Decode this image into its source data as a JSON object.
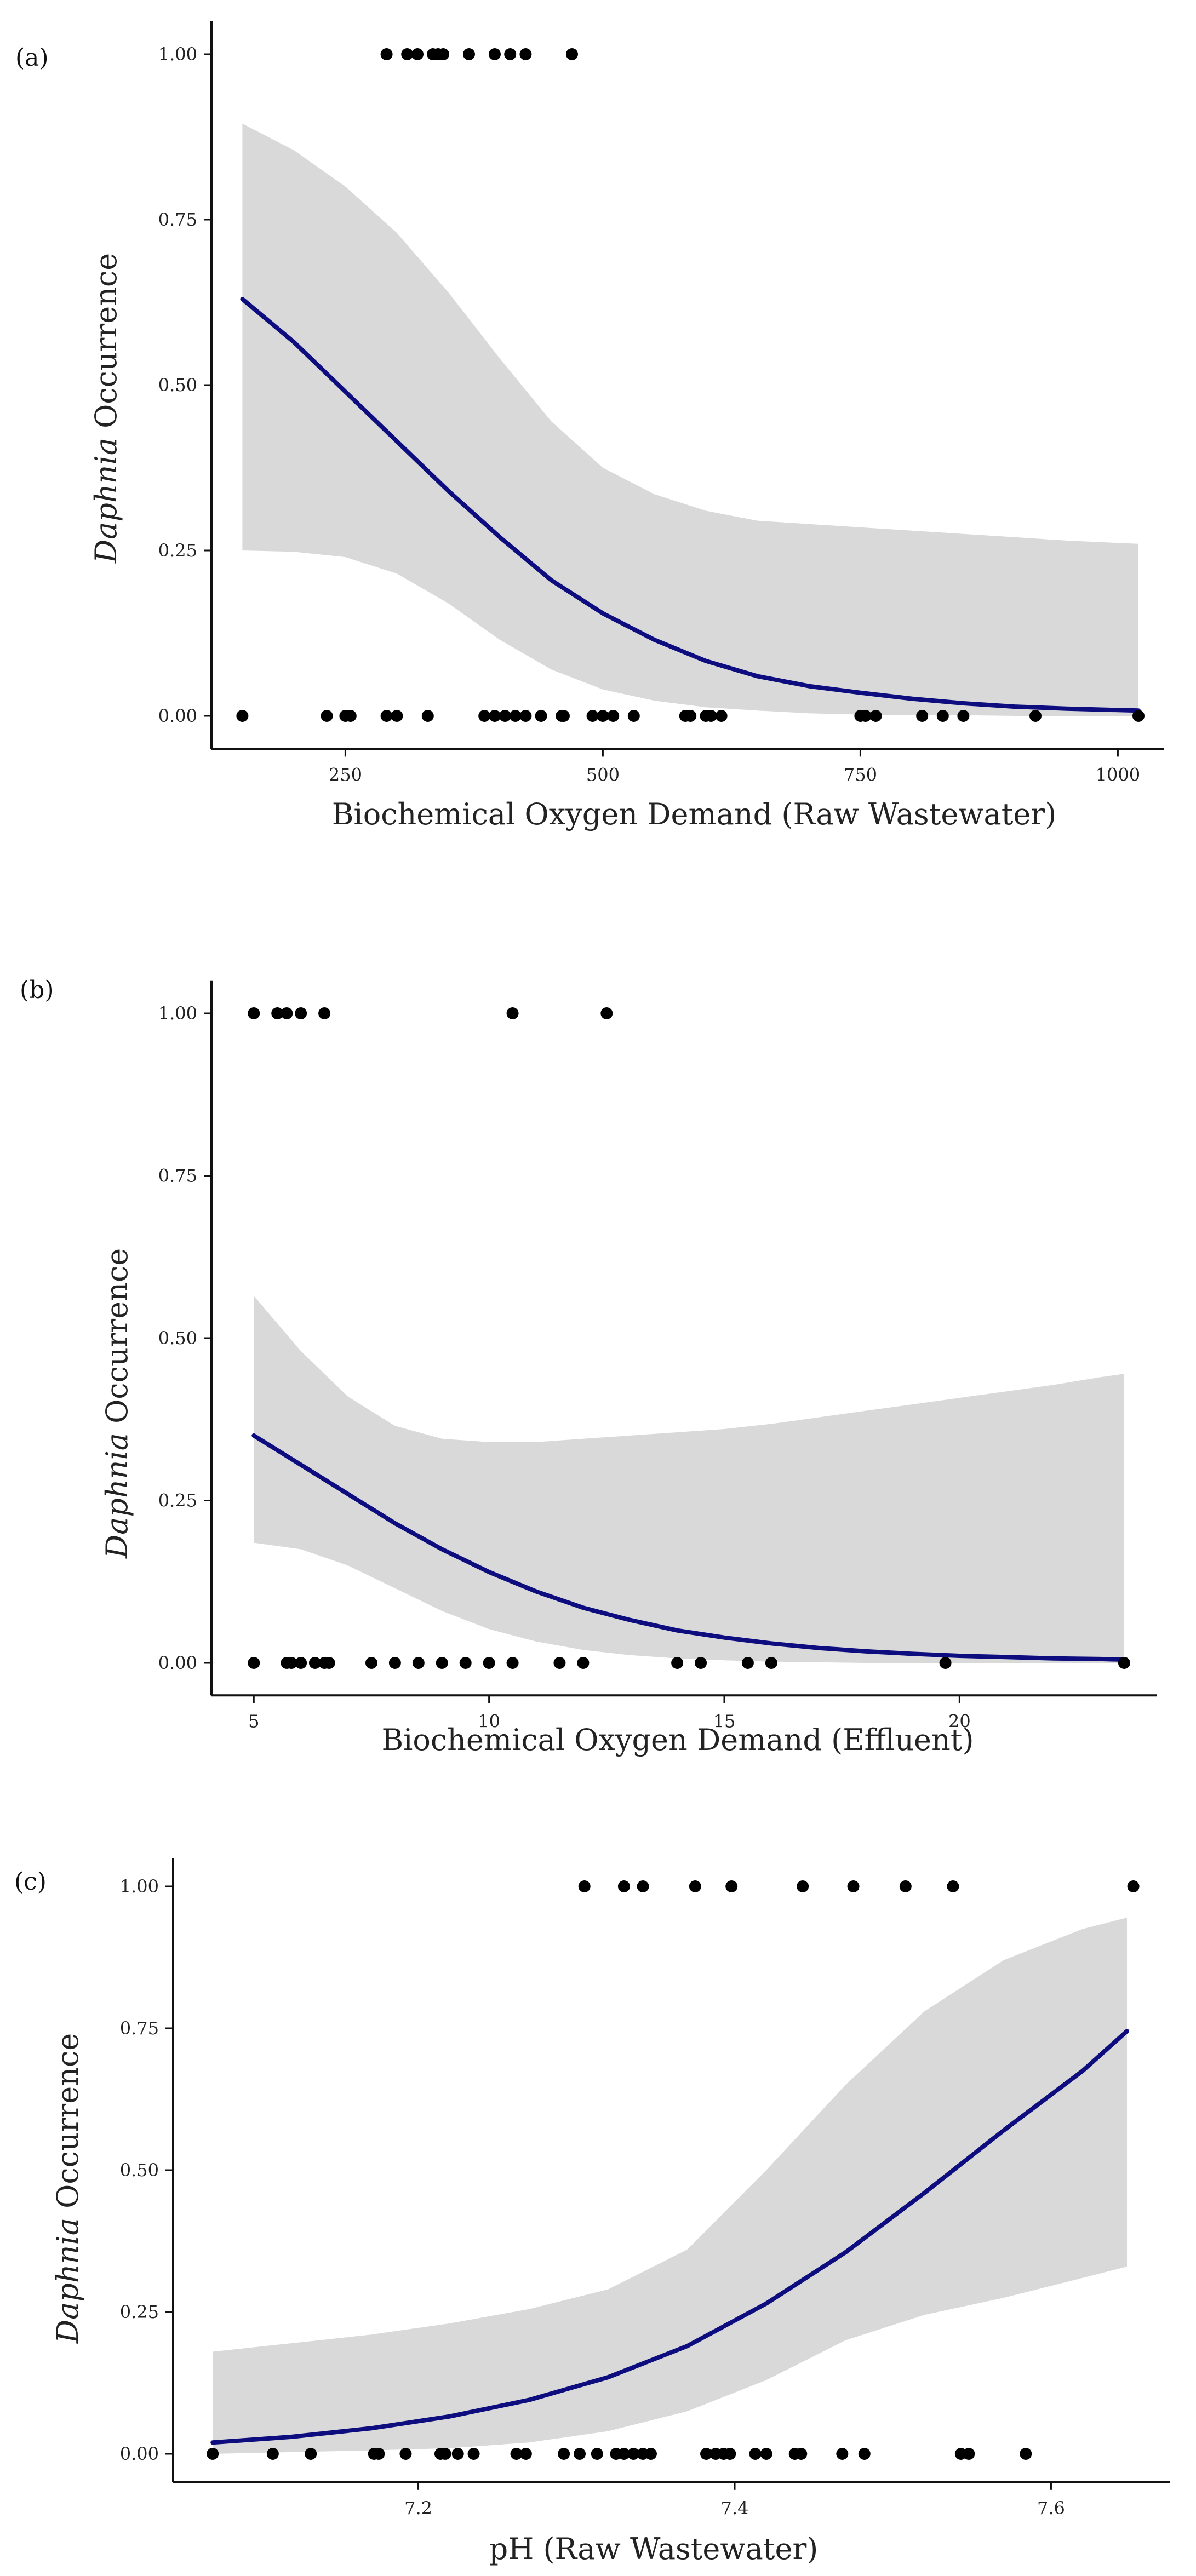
{
  "chart_data": [
    {
      "type": "scatter",
      "panel_label": "(a)",
      "xlabel": "Biochemical Oxygen Demand (Raw Wastewater)",
      "ylabel_italic": "Daphnia",
      "ylabel_rest": " Occurrence",
      "xlim": [
        120,
        1045
      ],
      "ylim": [
        -0.05,
        1.05
      ],
      "x_ticks": [
        250,
        500,
        750,
        1000
      ],
      "x_tick_labels": [
        "250",
        "500",
        "750",
        "1000"
      ],
      "y_ticks": [
        0,
        0.25,
        0.5,
        0.75,
        1
      ],
      "y_tick_labels": [
        "0.00",
        "0.25",
        "0.50",
        "0.75",
        "1.00"
      ],
      "points_y1": [
        290,
        310,
        320,
        335,
        340,
        345,
        370,
        395,
        410,
        425,
        470
      ],
      "points_y0": [
        150,
        232,
        250,
        255,
        290,
        300,
        330,
        385,
        395,
        405,
        415,
        425,
        440,
        460,
        462,
        490,
        500,
        510,
        530,
        580,
        585,
        600,
        605,
        615,
        750,
        755,
        765,
        810,
        830,
        850,
        920,
        1020
      ],
      "fit_line": {
        "x": [
          150,
          200,
          250,
          300,
          350,
          400,
          450,
          500,
          550,
          600,
          650,
          700,
          750,
          800,
          850,
          900,
          950,
          1020
        ],
        "y": [
          0.63,
          0.565,
          0.49,
          0.415,
          0.34,
          0.27,
          0.205,
          0.155,
          0.115,
          0.083,
          0.06,
          0.045,
          0.035,
          0.026,
          0.019,
          0.014,
          0.011,
          0.008
        ]
      },
      "ci_upper": [
        0.895,
        0.855,
        0.8,
        0.73,
        0.64,
        0.54,
        0.445,
        0.375,
        0.335,
        0.31,
        0.295,
        0.29,
        0.285,
        0.28,
        0.275,
        0.27,
        0.265,
        0.26
      ],
      "ci_lower": [
        0.25,
        0.248,
        0.24,
        0.215,
        0.17,
        0.115,
        0.07,
        0.04,
        0.023,
        0.013,
        0.008,
        0.004,
        0.002,
        0.001,
        0.001,
        0,
        0,
        0
      ],
      "line_color": "#0d0d80",
      "band_color": "#d9d9d9"
    },
    {
      "type": "scatter",
      "panel_label": "(b)",
      "xlabel": "Biochemical Oxygen Demand (Effluent)",
      "ylabel_italic": "Daphnia",
      "ylabel_rest": " Occurrence",
      "xlim": [
        4.1,
        24.2
      ],
      "ylim": [
        -0.05,
        1.05
      ],
      "x_ticks": [
        5,
        10,
        15,
        20
      ],
      "x_tick_labels": [
        "5",
        "10",
        "15",
        "20"
      ],
      "y_ticks": [
        0,
        0.25,
        0.5,
        0.75,
        1
      ],
      "y_tick_labels": [
        "0.00",
        "0.25",
        "0.50",
        "0.75",
        "1.00"
      ],
      "points_y1": [
        5,
        5.5,
        5.7,
        6,
        6.5,
        10.5,
        12.5
      ],
      "points_y0": [
        5,
        5.7,
        5.8,
        6,
        6.3,
        6.5,
        6.6,
        7.5,
        8,
        8.5,
        9,
        9.5,
        10,
        10.5,
        11.5,
        12,
        14,
        14.5,
        15.5,
        16,
        19.7,
        23.5
      ],
      "fit_line": {
        "x": [
          5,
          6,
          7,
          8,
          9,
          10,
          11,
          12,
          13,
          14,
          15,
          16,
          17,
          18,
          19,
          20,
          21,
          22,
          23,
          23.5
        ],
        "y": [
          0.35,
          0.305,
          0.26,
          0.215,
          0.175,
          0.14,
          0.11,
          0.085,
          0.066,
          0.05,
          0.039,
          0.03,
          0.023,
          0.018,
          0.014,
          0.011,
          0.009,
          0.007,
          0.006,
          0.005
        ]
      },
      "ci_upper": [
        0.565,
        0.48,
        0.41,
        0.365,
        0.345,
        0.34,
        0.34,
        0.345,
        0.35,
        0.355,
        0.36,
        0.368,
        0.378,
        0.388,
        0.398,
        0.408,
        0.418,
        0.428,
        0.44,
        0.445
      ],
      "ci_lower": [
        0.185,
        0.175,
        0.15,
        0.115,
        0.08,
        0.052,
        0.033,
        0.02,
        0.012,
        0.007,
        0.004,
        0.002,
        0.001,
        0,
        0,
        0,
        0,
        0,
        0,
        0
      ],
      "line_color": "#0d0d80",
      "band_color": "#d9d9d9"
    },
    {
      "type": "scatter",
      "panel_label": "(c)",
      "xlabel": "pH (Raw Wastewater)",
      "ylabel_italic": "Daphnia",
      "ylabel_rest": " Occurrence",
      "xlim": [
        7.045,
        7.675
      ],
      "ylim": [
        -0.05,
        1.05
      ],
      "x_ticks": [
        7.2,
        7.4,
        7.6
      ],
      "x_tick_labels": [
        "7.2",
        "7.4",
        "7.6"
      ],
      "y_ticks": [
        0,
        0.25,
        0.5,
        0.75,
        1
      ],
      "y_tick_labels": [
        "0.00",
        "0.25",
        "0.50",
        "0.75",
        "1.00"
      ],
      "points_y1": [
        7.305,
        7.33,
        7.342,
        7.375,
        7.398,
        7.443,
        7.475,
        7.508,
        7.538,
        7.652
      ],
      "points_y0": [
        7.07,
        7.108,
        7.132,
        7.172,
        7.175,
        7.192,
        7.214,
        7.217,
        7.225,
        7.235,
        7.262,
        7.268,
        7.292,
        7.302,
        7.313,
        7.325,
        7.33,
        7.336,
        7.342,
        7.347,
        7.382,
        7.388,
        7.393,
        7.397,
        7.413,
        7.42,
        7.438,
        7.442,
        7.468,
        7.482,
        7.543,
        7.548,
        7.584
      ],
      "fit_line": {
        "x": [
          7.07,
          7.12,
          7.17,
          7.22,
          7.27,
          7.32,
          7.37,
          7.42,
          7.47,
          7.52,
          7.57,
          7.62,
          7.648
        ],
        "y": [
          0.02,
          0.03,
          0.045,
          0.066,
          0.095,
          0.135,
          0.19,
          0.265,
          0.355,
          0.46,
          0.57,
          0.675,
          0.745
        ]
      },
      "ci_upper": [
        0.18,
        0.195,
        0.21,
        0.23,
        0.255,
        0.29,
        0.36,
        0.5,
        0.65,
        0.78,
        0.87,
        0.925,
        0.945
      ],
      "ci_lower": [
        0,
        0.003,
        0.006,
        0.01,
        0.02,
        0.04,
        0.075,
        0.13,
        0.2,
        0.245,
        0.275,
        0.31,
        0.33
      ],
      "line_color": "#0d0d80",
      "band_color": "#d9d9d9"
    }
  ]
}
